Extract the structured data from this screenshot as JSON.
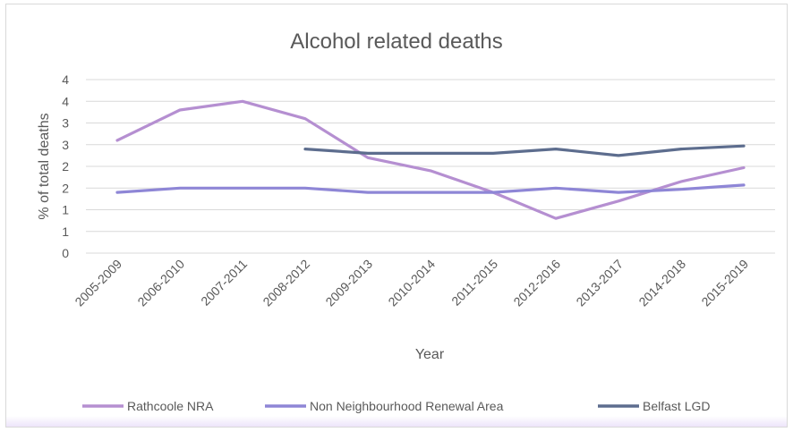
{
  "chart_data": {
    "type": "line",
    "title": "Alcohol related deaths",
    "xlabel": "Year",
    "ylabel": "% of total deaths",
    "categories": [
      "2005-2009",
      "2006-2010",
      "2007-2011",
      "2008-2012",
      "2009-2013",
      "2010-2014",
      "2011-2015",
      "2012-2016",
      "2013-2017",
      "2014-2018",
      "2015-2019"
    ],
    "y_tick_labels": [
      "0",
      "1",
      "1",
      "2",
      "2",
      "3",
      "3",
      "4",
      "4"
    ],
    "ylim": [
      0,
      4
    ],
    "grid": true,
    "legend_position": "bottom",
    "series": [
      {
        "name": "Rathcoole NRA",
        "color": "#b58fd1",
        "values": [
          2.6,
          3.3,
          3.5,
          3.1,
          2.2,
          1.9,
          1.4,
          0.8,
          1.2,
          1.65,
          1.97
        ]
      },
      {
        "name": "Non Neighbourhood Renewal Area",
        "color": "#8e86d6",
        "values": [
          1.4,
          1.5,
          1.5,
          1.5,
          1.4,
          1.4,
          1.4,
          1.5,
          1.4,
          1.47,
          1.57
        ]
      },
      {
        "name": "Belfast LGD",
        "color": "#5d6d8e",
        "values": [
          null,
          null,
          null,
          2.4,
          2.3,
          2.3,
          2.3,
          2.4,
          2.25,
          2.4,
          2.47
        ]
      }
    ]
  }
}
